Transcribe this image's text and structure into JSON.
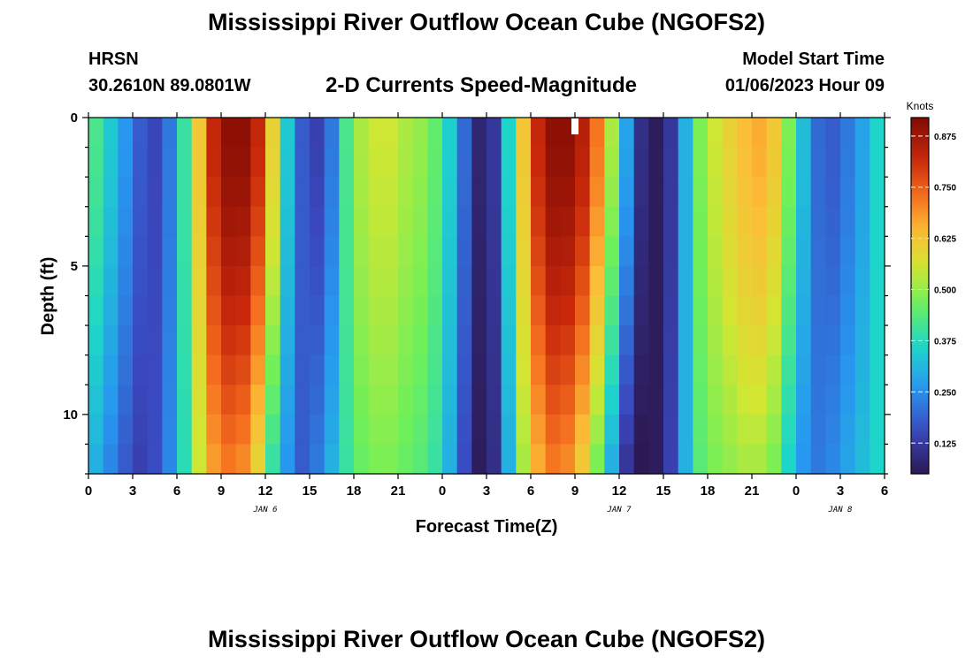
{
  "header": {
    "title": "Mississippi River Outflow Ocean Cube (NGOFS2)",
    "station": "HRSN",
    "coords": "30.2610N  89.0801W",
    "plot_title": "2-D Currents Speed-Magnitude",
    "model_start_label": "Model Start Time",
    "model_start_value": "01/06/2023 Hour 09"
  },
  "footer": {
    "title": "Mississippi River Outflow Ocean Cube (NGOFS2)"
  },
  "chart_data": {
    "type": "heatmap",
    "xlabel": "Forecast Time(Z)",
    "ylabel": "Depth (ft)",
    "x_tick_labels": [
      "0",
      "3",
      "6",
      "9",
      "12",
      "15",
      "18",
      "21",
      "0",
      "3",
      "6",
      "9",
      "12",
      "15",
      "18",
      "21",
      "0",
      "3",
      "6"
    ],
    "x_range_hours": [
      0,
      54
    ],
    "date_labels": [
      {
        "label": "JAN 6",
        "hour": 12
      },
      {
        "label": "JAN 7",
        "hour": 36
      },
      {
        "label": "JAN 8",
        "hour": 51
      }
    ],
    "y_tick_labels": [
      "0",
      "5",
      "10"
    ],
    "y_range_ft": [
      0,
      12
    ],
    "colorbar": {
      "unit": "Knots",
      "range": [
        0.05,
        0.92
      ],
      "tick_labels": [
        "0.875",
        "0.750",
        "0.625",
        "0.500",
        "0.375",
        "0.250",
        "0.125"
      ],
      "tick_values": [
        0.875,
        0.75,
        0.625,
        0.5,
        0.375,
        0.25,
        0.125
      ]
    },
    "marker": {
      "hour": 33,
      "depth_ft": 0.3
    },
    "surface_speed_knots_by_hour": [
      0.42,
      0.34,
      0.26,
      0.18,
      0.15,
      0.22,
      0.4,
      0.62,
      0.82,
      0.9,
      0.9,
      0.82,
      0.6,
      0.34,
      0.18,
      0.14,
      0.22,
      0.42,
      0.52,
      0.55,
      0.55,
      0.52,
      0.5,
      0.45,
      0.35,
      0.2,
      0.08,
      0.12,
      0.36,
      0.62,
      0.82,
      0.9,
      0.9,
      0.84,
      0.72,
      0.52,
      0.28,
      0.1,
      0.06,
      0.12,
      0.3,
      0.48,
      0.55,
      0.6,
      0.64,
      0.66,
      0.62,
      0.48,
      0.32,
      0.2,
      0.18,
      0.22,
      0.28,
      0.36
    ],
    "bottom_speed_knots_by_hour": [
      0.3,
      0.24,
      0.18,
      0.14,
      0.16,
      0.24,
      0.38,
      0.55,
      0.68,
      0.72,
      0.7,
      0.6,
      0.4,
      0.26,
      0.18,
      0.22,
      0.3,
      0.4,
      0.46,
      0.48,
      0.48,
      0.46,
      0.44,
      0.4,
      0.3,
      0.16,
      0.06,
      0.1,
      0.3,
      0.52,
      0.66,
      0.72,
      0.7,
      0.62,
      0.48,
      0.3,
      0.12,
      0.05,
      0.06,
      0.14,
      0.3,
      0.44,
      0.48,
      0.5,
      0.52,
      0.52,
      0.48,
      0.36,
      0.26,
      0.22,
      0.24,
      0.28,
      0.32,
      0.36
    ]
  }
}
